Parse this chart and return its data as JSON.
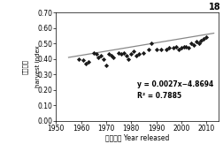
{
  "title_number": "18",
  "xlabel": "育成年份 Year released",
  "ylabel_chinese": "收获指数",
  "ylabel_english": "harvest index",
  "equation": "y = 0.0027x−4.8694",
  "r_squared": "R² = 0.7885",
  "xlim": [
    1950,
    2015
  ],
  "ylim": [
    0.0,
    0.7
  ],
  "xticks": [
    1950,
    1960,
    1970,
    1980,
    1990,
    2000,
    2010
  ],
  "yticks": [
    0.0,
    0.1,
    0.2,
    0.3,
    0.4,
    0.5,
    0.6,
    0.7
  ],
  "ytick_labels": [
    "0.00",
    "0.10",
    "0.20",
    "0.30",
    "0.40",
    "0.50",
    "0.60",
    "0.70"
  ],
  "scatter_color": "#1a1a1a",
  "line_color": "#888888",
  "scatter_x": [
    1959,
    1961,
    1962,
    1963,
    1965,
    1966,
    1967,
    1968,
    1969,
    1970,
    1971,
    1972,
    1973,
    1975,
    1976,
    1977,
    1978,
    1979,
    1980,
    1981,
    1982,
    1983,
    1985,
    1987,
    1988,
    1990,
    1992,
    1994,
    1995,
    1997,
    1998,
    1999,
    2000,
    2001,
    2002,
    2003,
    2004,
    2005,
    2006,
    2007,
    2008,
    2009,
    2010
  ],
  "scatter_y": [
    0.4,
    0.39,
    0.37,
    0.38,
    0.44,
    0.43,
    0.41,
    0.42,
    0.4,
    0.36,
    0.43,
    0.42,
    0.41,
    0.44,
    0.43,
    0.44,
    0.42,
    0.4,
    0.43,
    0.45,
    0.42,
    0.43,
    0.44,
    0.46,
    0.5,
    0.46,
    0.46,
    0.46,
    0.47,
    0.47,
    0.48,
    0.46,
    0.47,
    0.48,
    0.48,
    0.47,
    0.5,
    0.49,
    0.51,
    0.5,
    0.52,
    0.53,
    0.54
  ],
  "reg_slope": 0.0027,
  "reg_intercept": -4.8694,
  "background_color": "#ffffff",
  "figsize": [
    2.52,
    1.63
  ],
  "dpi": 100
}
